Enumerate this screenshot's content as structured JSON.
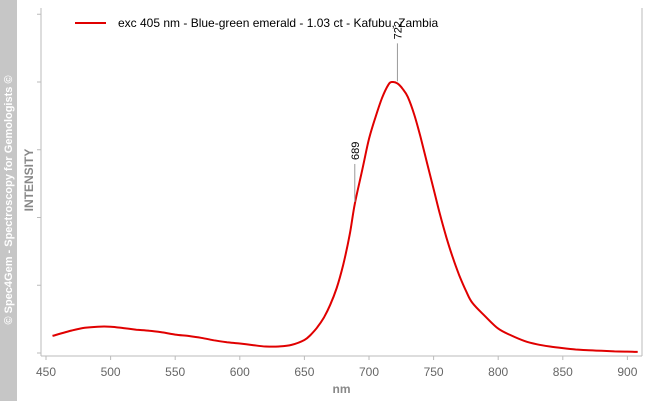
{
  "watermark": "© Spec4Gem - Spectroscopy for Gemologists ©",
  "chart_data": {
    "type": "line",
    "xlabel": "nm",
    "ylabel": "INTENSITY",
    "xlim": [
      450,
      910
    ],
    "ylim": [
      0,
      1
    ],
    "x_ticks": [
      450,
      500,
      550,
      600,
      650,
      700,
      750,
      800,
      850,
      900
    ],
    "y_ticks_labeled": false,
    "grid": false,
    "legend_position": "top-left",
    "colors": {
      "series": "#e00000",
      "axis": "#bbbbbb"
    },
    "series": [
      {
        "name": "exc 405 nm - Blue-green emerald - 1.03 ct - Kafubu, Zambia",
        "x": [
          455,
          470,
          480,
          490,
          500,
          510,
          520,
          530,
          540,
          550,
          560,
          570,
          580,
          590,
          600,
          610,
          620,
          630,
          640,
          650,
          655,
          660,
          665,
          670,
          675,
          680,
          685,
          689,
          695,
          700,
          705,
          710,
          715,
          718,
          722,
          726,
          730,
          735,
          740,
          745,
          750,
          755,
          760,
          765,
          770,
          775,
          780,
          790,
          800,
          810,
          820,
          830,
          840,
          850,
          860,
          870,
          880,
          890,
          900,
          908
        ],
        "y": [
          0.063,
          0.083,
          0.093,
          0.097,
          0.097,
          0.092,
          0.086,
          0.082,
          0.076,
          0.068,
          0.063,
          0.056,
          0.047,
          0.04,
          0.035,
          0.029,
          0.024,
          0.024,
          0.03,
          0.048,
          0.068,
          0.095,
          0.13,
          0.178,
          0.24,
          0.325,
          0.435,
          0.55,
          0.68,
          0.79,
          0.87,
          0.94,
          0.99,
          1.0,
          0.995,
          0.975,
          0.945,
          0.88,
          0.795,
          0.7,
          0.605,
          0.51,
          0.425,
          0.35,
          0.285,
          0.23,
          0.185,
          0.135,
          0.09,
          0.065,
          0.045,
          0.032,
          0.024,
          0.018,
          0.013,
          0.01,
          0.008,
          0.006,
          0.005,
          0.004
        ]
      }
    ],
    "annotations": [
      {
        "x": 689,
        "label": "689"
      },
      {
        "x": 722,
        "label": "722"
      }
    ]
  }
}
